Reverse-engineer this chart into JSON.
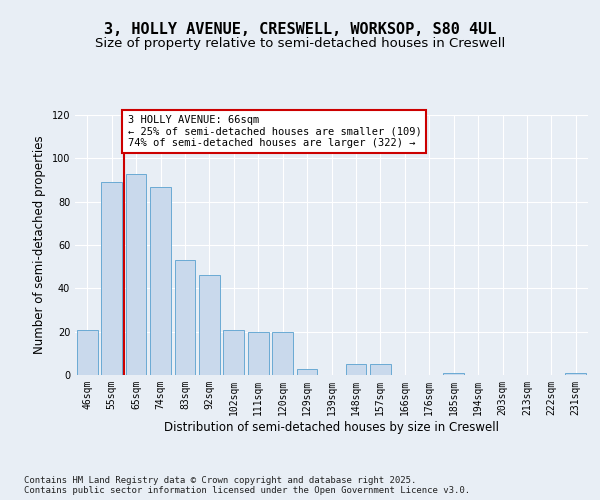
{
  "title_line1": "3, HOLLY AVENUE, CRESWELL, WORKSOP, S80 4UL",
  "title_line2": "Size of property relative to semi-detached houses in Creswell",
  "xlabel": "Distribution of semi-detached houses by size in Creswell",
  "ylabel": "Number of semi-detached properties",
  "categories": [
    "46sqm",
    "55sqm",
    "65sqm",
    "74sqm",
    "83sqm",
    "92sqm",
    "102sqm",
    "111sqm",
    "120sqm",
    "129sqm",
    "139sqm",
    "148sqm",
    "157sqm",
    "166sqm",
    "176sqm",
    "185sqm",
    "194sqm",
    "203sqm",
    "213sqm",
    "222sqm",
    "231sqm"
  ],
  "values": [
    21,
    89,
    93,
    87,
    53,
    46,
    21,
    20,
    20,
    3,
    0,
    5,
    5,
    0,
    0,
    1,
    0,
    0,
    0,
    0,
    1
  ],
  "bar_color": "#c9d9ec",
  "bar_edge_color": "#6aaad4",
  "vline_color": "#cc0000",
  "annotation_text": "3 HOLLY AVENUE: 66sqm\n← 25% of semi-detached houses are smaller (109)\n74% of semi-detached houses are larger (322) →",
  "annotation_box_color": "#ffffff",
  "annotation_box_edge": "#cc0000",
  "ylim": [
    0,
    120
  ],
  "yticks": [
    0,
    20,
    40,
    60,
    80,
    100,
    120
  ],
  "background_color": "#e8eef5",
  "plot_bg_color": "#e8eef5",
  "footer_text": "Contains HM Land Registry data © Crown copyright and database right 2025.\nContains public sector information licensed under the Open Government Licence v3.0.",
  "title_fontsize": 11,
  "subtitle_fontsize": 9.5,
  "axis_label_fontsize": 8.5,
  "tick_fontsize": 7,
  "footer_fontsize": 6.5,
  "annotation_fontsize": 7.5
}
